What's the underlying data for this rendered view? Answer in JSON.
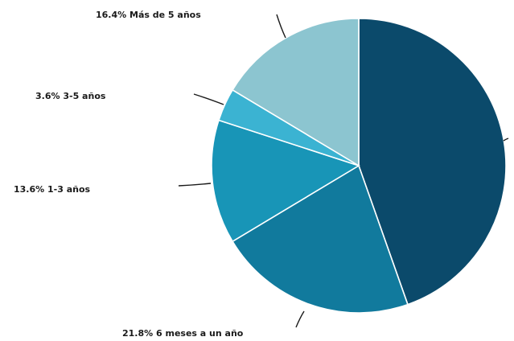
{
  "chart_data": {
    "type": "pie",
    "start_angle_deg": 0,
    "direction": "clockwise",
    "slices": [
      {
        "label": "",
        "pct_text": "",
        "value": 44.6,
        "color": "#0b4a6b"
      },
      {
        "label": "6 meses a un año",
        "pct_text": "21.8%",
        "value": 21.8,
        "color": "#117a9d"
      },
      {
        "label": "1-3 años",
        "pct_text": "13.6%",
        "value": 13.6,
        "color": "#1895b7"
      },
      {
        "label": "3-5 años",
        "pct_text": "3.6%",
        "value": 3.6,
        "color": "#3bb3d2"
      },
      {
        "label": "Más de 5 años",
        "pct_text": "16.4%",
        "value": 16.4,
        "color": "#8cc5d0"
      }
    ]
  }
}
